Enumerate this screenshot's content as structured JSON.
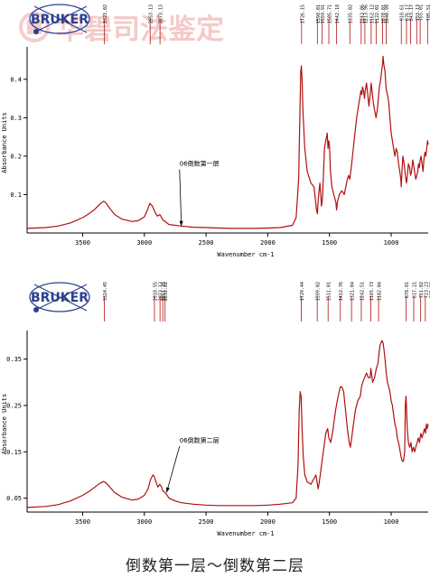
{
  "watermark": {
    "text": "华碧司法鉴定"
  },
  "brand": "BRUKER",
  "caption": "倒数第一层～倒数第二层",
  "colors": {
    "trace": "#b01010",
    "axis": "#000000",
    "watermark": "#f2b8b8",
    "logo": "#2a3f8f"
  },
  "chart_data": [
    {
      "type": "line",
      "xlabel": "Wavenumber cm-1",
      "ylabel": "Absorbance Units",
      "xlim": [
        3950,
        700
      ],
      "ylim": [
        0.0,
        0.47
      ],
      "x_ticks": [
        3500,
        3000,
        2500,
        2000,
        1500,
        1000
      ],
      "y_ticks": [
        0.1,
        0.2,
        0.3,
        0.4
      ],
      "y_tick_labels": [
        "0.1",
        "0.2",
        "0.3",
        "0.4"
      ],
      "annotation": {
        "text": "06倒数第一层",
        "x": 2700,
        "y": 0.018,
        "label_x": 2700,
        "label_y": 0.175
      },
      "peak_labels": [
        {
          "x": 3323,
          "label": "3323.02"
        },
        {
          "x": 2953,
          "label": "2953.13"
        },
        {
          "x": 2873,
          "label": "2873.13"
        },
        {
          "x": 1726,
          "label": "1726.15"
        },
        {
          "x": 1598,
          "label": "1598.01"
        },
        {
          "x": 1559,
          "label": "1559.91"
        },
        {
          "x": 1505,
          "label": "1505.71"
        },
        {
          "x": 1442,
          "label": "1442.18"
        },
        {
          "x": 1335,
          "label": "1335.02"
        },
        {
          "x": 1243,
          "label": "1243.06"
        },
        {
          "x": 1213,
          "label": "1213.96"
        },
        {
          "x": 1162,
          "label": "1162.12"
        },
        {
          "x": 1122,
          "label": "1122.01"
        },
        {
          "x": 1070,
          "label": "1070.01"
        },
        {
          "x": 1040,
          "label": "1040.99"
        },
        {
          "x": 918,
          "label": "918.61"
        },
        {
          "x": 876,
          "label": "876.17"
        },
        {
          "x": 843,
          "label": "843.17"
        },
        {
          "x": 793,
          "label": "793.13"
        },
        {
          "x": 765,
          "label": "765.01"
        },
        {
          "x": 705,
          "label": "705.51"
        }
      ],
      "series": [
        {
          "x": [
            3950,
            3800,
            3700,
            3600,
            3500,
            3450,
            3400,
            3360,
            3330,
            3310,
            3280,
            3240,
            3180,
            3100,
            3050,
            3000,
            2975,
            2955,
            2935,
            2915,
            2895,
            2875,
            2850,
            2800,
            2700,
            2600,
            2500,
            2400,
            2300,
            2200,
            2100,
            2000,
            1900,
            1800,
            1770,
            1750,
            1740,
            1733,
            1728,
            1722,
            1715,
            1700,
            1680,
            1650,
            1625,
            1605,
            1598,
            1590,
            1578,
            1570,
            1565,
            1560,
            1555,
            1548,
            1540,
            1530,
            1518,
            1512,
            1506,
            1500,
            1492,
            1480,
            1465,
            1448,
            1442,
            1436,
            1420,
            1400,
            1380,
            1355,
            1345,
            1335,
            1320,
            1300,
            1280,
            1260,
            1245,
            1238,
            1232,
            1224,
            1216,
            1210,
            1200,
            1190,
            1180,
            1170,
            1162,
            1155,
            1145,
            1135,
            1122,
            1112,
            1104,
            1095,
            1085,
            1078,
            1070,
            1065,
            1060,
            1050,
            1042,
            1038,
            1030,
            1020,
            1010,
            1000,
            990,
            980,
            970,
            960,
            950,
            940,
            930,
            922,
            918,
            912,
            905,
            895,
            885,
            876,
            868,
            860,
            850,
            843,
            835,
            825,
            815,
            806,
            800,
            793,
            785,
            778,
            772,
            765,
            758,
            750,
            742,
            735,
            726,
            720,
            712,
            705,
            700
          ],
          "y": [
            0.012,
            0.014,
            0.018,
            0.026,
            0.04,
            0.05,
            0.062,
            0.075,
            0.083,
            0.078,
            0.064,
            0.048,
            0.036,
            0.03,
            0.032,
            0.042,
            0.06,
            0.077,
            0.07,
            0.055,
            0.044,
            0.048,
            0.034,
            0.022,
            0.018,
            0.015,
            0.014,
            0.013,
            0.012,
            0.012,
            0.012,
            0.013,
            0.014,
            0.02,
            0.04,
            0.14,
            0.3,
            0.42,
            0.435,
            0.4,
            0.32,
            0.22,
            0.16,
            0.13,
            0.12,
            0.06,
            0.05,
            0.09,
            0.13,
            0.1,
            0.07,
            0.08,
            0.1,
            0.16,
            0.22,
            0.24,
            0.26,
            0.22,
            0.24,
            0.23,
            0.16,
            0.12,
            0.1,
            0.08,
            0.06,
            0.08,
            0.1,
            0.11,
            0.1,
            0.14,
            0.15,
            0.14,
            0.18,
            0.24,
            0.3,
            0.34,
            0.37,
            0.36,
            0.38,
            0.37,
            0.35,
            0.37,
            0.39,
            0.36,
            0.33,
            0.36,
            0.39,
            0.37,
            0.34,
            0.32,
            0.3,
            0.32,
            0.35,
            0.38,
            0.4,
            0.42,
            0.44,
            0.46,
            0.44,
            0.42,
            0.38,
            0.37,
            0.36,
            0.34,
            0.3,
            0.26,
            0.24,
            0.22,
            0.2,
            0.22,
            0.21,
            0.18,
            0.16,
            0.14,
            0.12,
            0.16,
            0.2,
            0.18,
            0.15,
            0.13,
            0.15,
            0.18,
            0.17,
            0.15,
            0.16,
            0.19,
            0.17,
            0.15,
            0.14,
            0.15,
            0.16,
            0.18,
            0.17,
            0.19,
            0.2,
            0.18,
            0.16,
            0.19,
            0.21,
            0.2,
            0.22,
            0.24,
            0.23
          ]
        }
      ]
    },
    {
      "type": "line",
      "xlabel": "Wavenumber cm-1",
      "ylabel": "Absorbance Units",
      "xlim": [
        3950,
        700
      ],
      "ylim": [
        0.02,
        0.4
      ],
      "x_ticks": [
        3500,
        3000,
        2500,
        2000,
        1500,
        1000
      ],
      "y_ticks": [
        0.05,
        0.15,
        0.25,
        0.35
      ],
      "y_tick_labels": [
        "0.05",
        "0.15",
        "0.25",
        "0.35"
      ],
      "annotation": {
        "text": "06倒数第二层",
        "x": 2820,
        "y": 0.062,
        "label_x": 2700,
        "label_y": 0.17
      },
      "peak_labels": [
        {
          "x": 3324,
          "label": "3324.45"
        },
        {
          "x": 2918,
          "label": "2918.55"
        },
        {
          "x": 2873,
          "label": "2873.13"
        },
        {
          "x": 2851,
          "label": "2851.25"
        },
        {
          "x": 2832,
          "label": "2832.82"
        },
        {
          "x": 1729,
          "label": "1729.44"
        },
        {
          "x": 1599,
          "label": "1599.02"
        },
        {
          "x": 1511,
          "label": "1511.01"
        },
        {
          "x": 1412,
          "label": "1412.76"
        },
        {
          "x": 1321,
          "label": "1321.04"
        },
        {
          "x": 1242,
          "label": "1242.51"
        },
        {
          "x": 1165,
          "label": "1165.73"
        },
        {
          "x": 1102,
          "label": "1102.04"
        },
        {
          "x": 878,
          "label": "878.81"
        },
        {
          "x": 817,
          "label": "817.21"
        },
        {
          "x": 761,
          "label": "761.02"
        },
        {
          "x": 723,
          "label": "723.23"
        },
        {
          "x": 681,
          "label": "681.22"
        }
      ],
      "series": [
        {
          "x": [
            3950,
            3800,
            3700,
            3600,
            3500,
            3450,
            3400,
            3360,
            3330,
            3310,
            3280,
            3240,
            3180,
            3100,
            3050,
            3000,
            2970,
            2950,
            2930,
            2918,
            2905,
            2890,
            2875,
            2860,
            2850,
            2840,
            2820,
            2800,
            2750,
            2700,
            2600,
            2500,
            2400,
            2300,
            2200,
            2100,
            2000,
            1900,
            1800,
            1770,
            1755,
            1745,
            1737,
            1730,
            1722,
            1712,
            1700,
            1680,
            1650,
            1630,
            1610,
            1600,
            1592,
            1585,
            1575,
            1560,
            1545,
            1530,
            1515,
            1505,
            1490,
            1470,
            1450,
            1430,
            1412,
            1400,
            1385,
            1370,
            1355,
            1340,
            1330,
            1320,
            1305,
            1290,
            1270,
            1250,
            1240,
            1230,
            1215,
            1200,
            1185,
            1170,
            1165,
            1150,
            1135,
            1120,
            1108,
            1100,
            1090,
            1075,
            1065,
            1058,
            1050,
            1040,
            1030,
            1020,
            1010,
            1000,
            990,
            980,
            970,
            960,
            950,
            940,
            930,
            920,
            910,
            900,
            890,
            885,
            880,
            875,
            870,
            860,
            850,
            840,
            830,
            820,
            810,
            800,
            790,
            780,
            770,
            760,
            750,
            740,
            730,
            722,
            715,
            708,
            700
          ],
          "y": [
            0.03,
            0.032,
            0.036,
            0.044,
            0.056,
            0.064,
            0.074,
            0.082,
            0.086,
            0.083,
            0.074,
            0.062,
            0.052,
            0.046,
            0.048,
            0.056,
            0.07,
            0.09,
            0.1,
            0.096,
            0.084,
            0.074,
            0.08,
            0.074,
            0.066,
            0.064,
            0.058,
            0.05,
            0.044,
            0.04,
            0.037,
            0.035,
            0.034,
            0.034,
            0.034,
            0.034,
            0.035,
            0.037,
            0.04,
            0.05,
            0.12,
            0.24,
            0.28,
            0.27,
            0.2,
            0.14,
            0.1,
            0.085,
            0.08,
            0.09,
            0.1,
            0.085,
            0.07,
            0.08,
            0.1,
            0.13,
            0.16,
            0.19,
            0.2,
            0.18,
            0.17,
            0.2,
            0.24,
            0.27,
            0.29,
            0.29,
            0.28,
            0.24,
            0.2,
            0.17,
            0.16,
            0.18,
            0.21,
            0.24,
            0.26,
            0.27,
            0.29,
            0.3,
            0.31,
            0.32,
            0.31,
            0.31,
            0.33,
            0.3,
            0.31,
            0.33,
            0.34,
            0.36,
            0.38,
            0.39,
            0.385,
            0.37,
            0.35,
            0.32,
            0.3,
            0.29,
            0.28,
            0.26,
            0.25,
            0.23,
            0.21,
            0.2,
            0.18,
            0.17,
            0.155,
            0.14,
            0.13,
            0.13,
            0.15,
            0.25,
            0.27,
            0.24,
            0.2,
            0.17,
            0.16,
            0.17,
            0.15,
            0.16,
            0.15,
            0.16,
            0.17,
            0.18,
            0.17,
            0.19,
            0.18,
            0.19,
            0.2,
            0.19,
            0.21,
            0.2,
            0.21
          ]
        }
      ]
    }
  ]
}
